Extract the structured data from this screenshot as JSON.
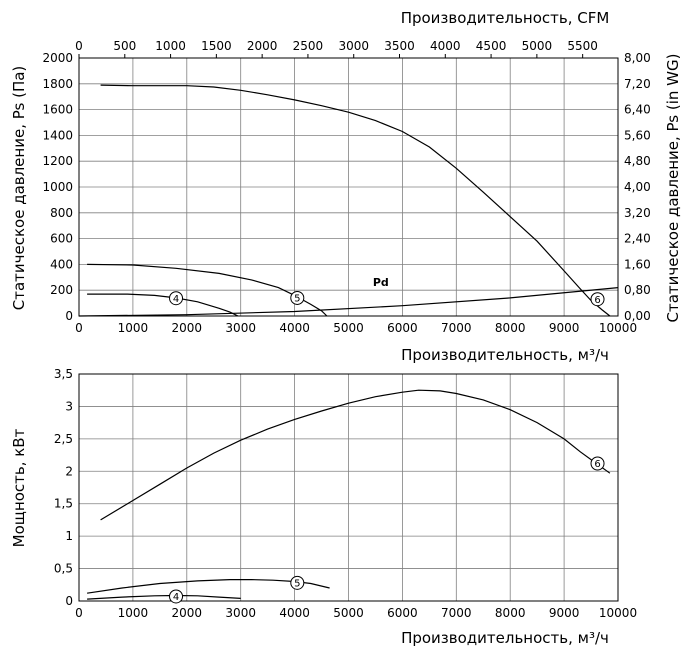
{
  "chart_data": [
    {
      "type": "line",
      "xlabel": "Производительность, м³/ч",
      "x2label": "Производительность, CFM",
      "ylabel": "Статическое давление, Ps (Па)",
      "y2label": "Статическое давление, Ps (in WG)",
      "xlim": [
        0,
        10000
      ],
      "ylim": [
        0,
        2000
      ],
      "x_ticks": [
        "0",
        "1000",
        "2000",
        "3000",
        "4000",
        "5000",
        "6000",
        "7000",
        "8000",
        "9000",
        "10000"
      ],
      "y_ticks": [
        "0",
        "200",
        "400",
        "600",
        "800",
        "1000",
        "1200",
        "1400",
        "1600",
        "1800",
        "2000"
      ],
      "x2_ticks": [
        "0",
        "500",
        "1000",
        "1500",
        "2000",
        "2500",
        "3000",
        "3500",
        "4000",
        "4500",
        "5000",
        "5500"
      ],
      "x2_scale_cfm_per_m3h": 0.5886,
      "y2_ticks": [
        "0,00",
        "0,80",
        "1,60",
        "2,40",
        "3,20",
        "4,00",
        "4,80",
        "5,60",
        "6,40",
        "7,20",
        "8,00"
      ],
      "y2_scale_inwg_per_pa": 0.004,
      "grid": true,
      "series": [
        {
          "name": "4",
          "x": [
            150,
            900,
            1400,
            1800,
            2200,
            2600,
            2800,
            2950
          ],
          "y": [
            170,
            170,
            160,
            140,
            110,
            60,
            30,
            0
          ],
          "marker_at": [
            1800,
            138
          ]
        },
        {
          "name": "5",
          "x": [
            150,
            1000,
            1800,
            2600,
            3200,
            3700,
            4000,
            4300,
            4500,
            4600
          ],
          "y": [
            400,
            395,
            370,
            330,
            280,
            220,
            160,
            90,
            40,
            0
          ],
          "marker_at": [
            4050,
            140
          ]
        },
        {
          "name": "6",
          "x": [
            400,
            1000,
            1500,
            2000,
            2500,
            3000,
            3500,
            4000,
            4500,
            5000,
            5500,
            6000,
            6500,
            7000,
            7500,
            8000,
            8500,
            9000,
            9300,
            9500,
            9700,
            9850
          ],
          "y": [
            1790,
            1785,
            1785,
            1785,
            1775,
            1750,
            1715,
            1675,
            1630,
            1580,
            1515,
            1430,
            1310,
            1145,
            960,
            770,
            580,
            350,
            210,
            120,
            50,
            0
          ],
          "marker_at": [
            9620,
            130
          ]
        },
        {
          "name": "Pd",
          "x": [
            0,
            2000,
            4000,
            6000,
            8000,
            10000
          ],
          "y": [
            0,
            10,
            35,
            80,
            140,
            220
          ]
        }
      ],
      "annotations": [
        {
          "text": "Pd",
          "x": 5600,
          "y": 140
        }
      ]
    },
    {
      "type": "line",
      "xlabel": "Производительность, м³/ч",
      "ylabel": "Мощность, кВт",
      "xlim": [
        0,
        10000
      ],
      "ylim": [
        0,
        3.5
      ],
      "x_ticks": [
        "0",
        "1000",
        "2000",
        "3000",
        "4000",
        "5000",
        "6000",
        "7000",
        "8000",
        "9000",
        "10000"
      ],
      "y_ticks": [
        "0",
        "0,5",
        "1",
        "1,5",
        "2",
        "2,5",
        "3",
        "3,5"
      ],
      "grid": true,
      "series": [
        {
          "name": "4",
          "x": [
            150,
            800,
            1400,
            1800,
            2200,
            2600,
            3000
          ],
          "y": [
            0.03,
            0.06,
            0.08,
            0.085,
            0.08,
            0.06,
            0.04
          ],
          "marker_at": [
            1800,
            0.07
          ]
        },
        {
          "name": "5",
          "x": [
            150,
            800,
            1500,
            2200,
            2800,
            3200,
            3600,
            4000,
            4300,
            4650
          ],
          "y": [
            0.12,
            0.2,
            0.27,
            0.31,
            0.33,
            0.33,
            0.32,
            0.3,
            0.27,
            0.2
          ],
          "marker_at": [
            4050,
            0.28
          ]
        },
        {
          "name": "6",
          "x": [
            400,
            1000,
            1500,
            2000,
            2500,
            3000,
            3500,
            4000,
            4500,
            5000,
            5500,
            6000,
            6300,
            6700,
            7000,
            7500,
            8000,
            8500,
            9000,
            9300,
            9600,
            9850
          ],
          "y": [
            1.25,
            1.55,
            1.8,
            2.05,
            2.28,
            2.48,
            2.65,
            2.8,
            2.93,
            3.05,
            3.15,
            3.22,
            3.25,
            3.24,
            3.2,
            3.1,
            2.95,
            2.75,
            2.5,
            2.3,
            2.12,
            1.97
          ],
          "marker_at": [
            9620,
            2.12
          ]
        }
      ]
    }
  ]
}
